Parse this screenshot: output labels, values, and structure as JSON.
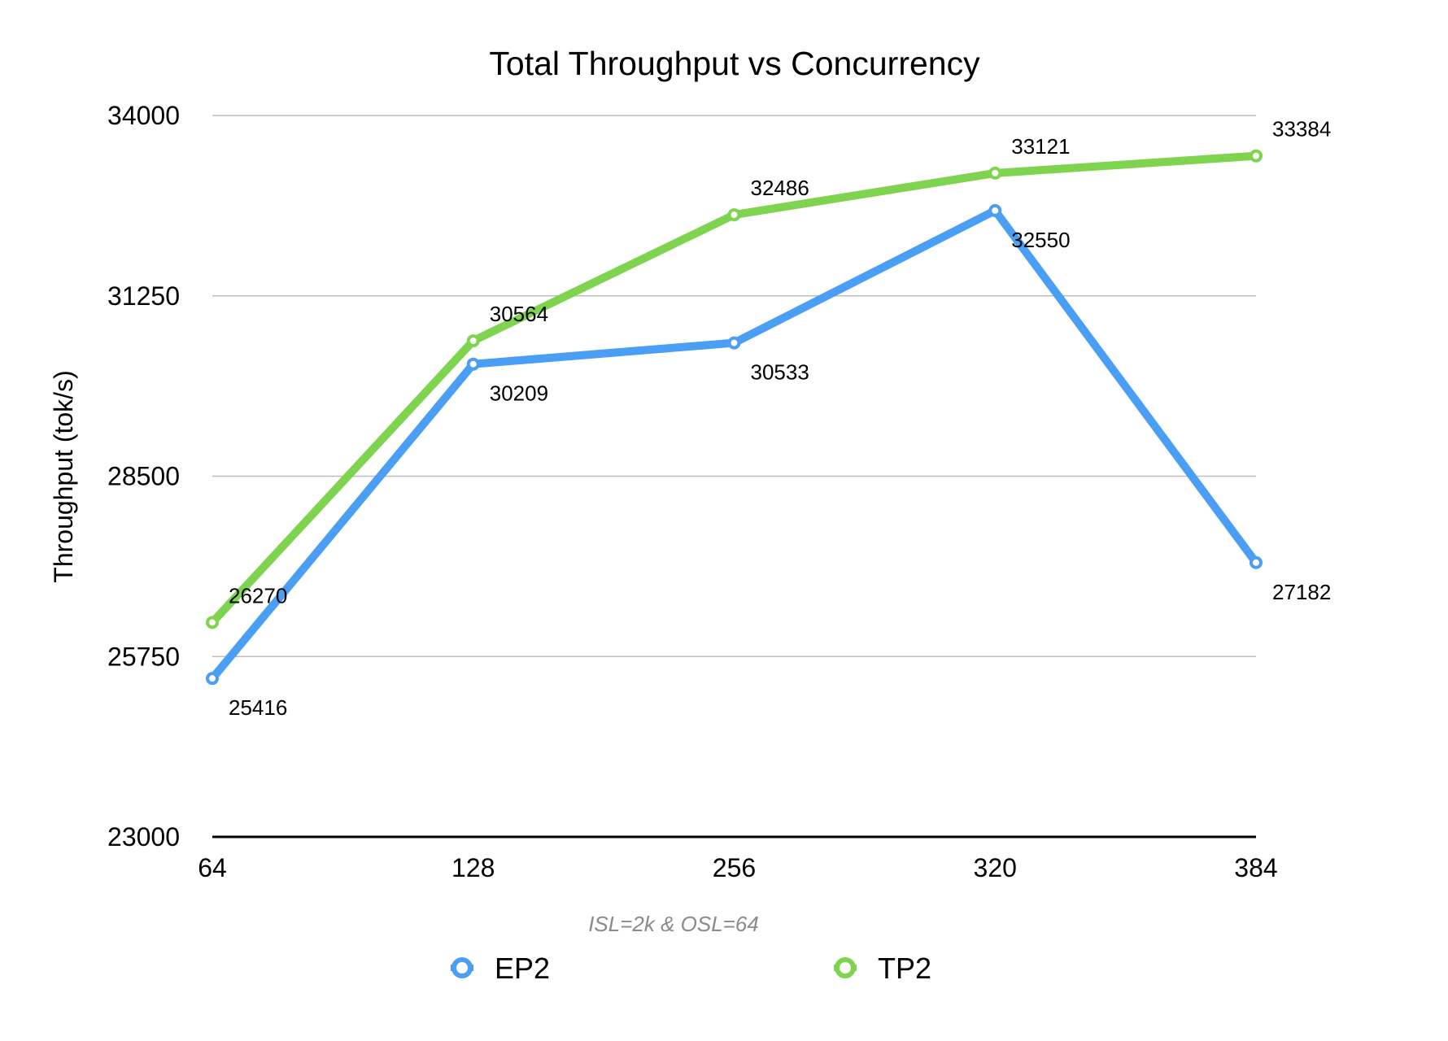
{
  "chart_data": {
    "type": "line",
    "title": "Total Throughput vs Concurrency",
    "subtitle": "ISL=2k & OSL=64",
    "xlabel": "",
    "ylabel": "Throughput (tok/s)",
    "categories": [
      "64",
      "128",
      "256",
      "320",
      "384"
    ],
    "ylim": [
      23000,
      34000
    ],
    "yticks": [
      "23000",
      "25750",
      "28500",
      "31250",
      "34000"
    ],
    "grid": true,
    "legend_position": "bottom",
    "series": [
      {
        "name": "EP2",
        "color": "#4a9ff5",
        "values": [
          25416,
          30209,
          30533,
          32550,
          27182
        ],
        "label_position": "below"
      },
      {
        "name": "TP2",
        "color": "#7ed44e",
        "values": [
          26270,
          30564,
          32486,
          33121,
          33384
        ],
        "label_position": "above"
      }
    ]
  }
}
